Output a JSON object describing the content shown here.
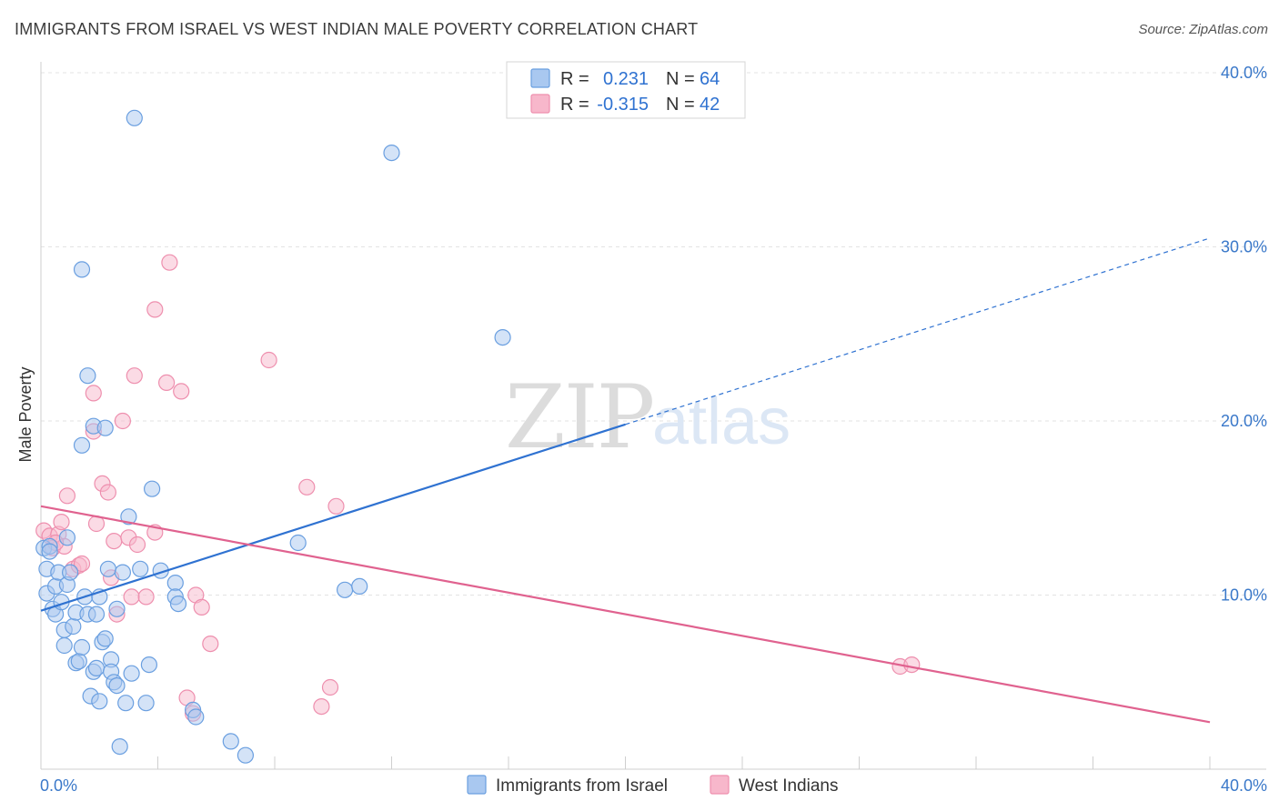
{
  "title": "IMMIGRANTS FROM ISRAEL VS WEST INDIAN MALE POVERTY CORRELATION CHART",
  "source": "Source: ZipAtlas.com",
  "watermark": {
    "zip": "ZIP",
    "atlas": "atlas"
  },
  "colors": {
    "blue_fill": "#a9c8f0",
    "blue_stroke": "#6a9fe0",
    "blue_line": "#2f72d1",
    "pink_fill": "#f7b7cb",
    "pink_stroke": "#ee8fae",
    "pink_line": "#e0628f",
    "tick_text": "#3a78c9",
    "grid": "#e3e3e3",
    "legend_value": "#2f72d1"
  },
  "legend": {
    "rows": [
      {
        "r_label": "R =",
        "r_value": "0.231",
        "n_label": "N =",
        "n_value": "64"
      },
      {
        "r_label": "R =",
        "r_value": "-0.315",
        "n_label": "N =",
        "n_value": "42"
      }
    ]
  },
  "chart_data": {
    "type": "scatter",
    "title": "IMMIGRANTS FROM ISRAEL VS WEST INDIAN MALE POVERTY CORRELATION CHART",
    "xlabel": "",
    "ylabel": "Male Poverty",
    "xlim": [
      0,
      40
    ],
    "ylim": [
      0,
      40
    ],
    "x_tick_labels": [
      "0.0%",
      "40.0%"
    ],
    "y_ticks": [
      10,
      20,
      30,
      40
    ],
    "y_tick_labels": [
      "10.0%",
      "20.0%",
      "30.0%",
      "40.0%"
    ],
    "series": [
      {
        "name": "Immigrants from Israel",
        "r": 0.231,
        "n": 64,
        "trend": {
          "x0": 0,
          "y0": 9.1,
          "x1": 40,
          "y1": 30.5,
          "solid_until_x": 20
        },
        "points": [
          [
            0.1,
            12.7
          ],
          [
            0.2,
            11.5
          ],
          [
            0.2,
            10.1
          ],
          [
            0.3,
            12.8
          ],
          [
            0.4,
            9.2
          ],
          [
            0.5,
            10.5
          ],
          [
            0.5,
            8.9
          ],
          [
            0.6,
            11.3
          ],
          [
            0.7,
            9.6
          ],
          [
            0.8,
            8.0
          ],
          [
            0.8,
            7.1
          ],
          [
            0.9,
            13.3
          ],
          [
            0.9,
            10.6
          ],
          [
            1.0,
            11.3
          ],
          [
            1.1,
            8.2
          ],
          [
            1.2,
            9.0
          ],
          [
            1.2,
            6.1
          ],
          [
            1.3,
            6.2
          ],
          [
            1.4,
            7.0
          ],
          [
            1.5,
            9.9
          ],
          [
            1.6,
            8.9
          ],
          [
            1.7,
            4.2
          ],
          [
            1.8,
            5.6
          ],
          [
            1.9,
            5.8
          ],
          [
            2.0,
            9.9
          ],
          [
            2.0,
            3.9
          ],
          [
            2.1,
            7.3
          ],
          [
            2.2,
            7.5
          ],
          [
            2.3,
            11.5
          ],
          [
            2.4,
            6.3
          ],
          [
            2.4,
            5.6
          ],
          [
            2.5,
            5.0
          ],
          [
            2.6,
            9.2
          ],
          [
            2.6,
            4.8
          ],
          [
            2.7,
            1.3
          ],
          [
            2.8,
            11.3
          ],
          [
            2.9,
            3.8
          ],
          [
            3.0,
            14.5
          ],
          [
            3.1,
            5.5
          ],
          [
            3.4,
            11.5
          ],
          [
            3.6,
            3.8
          ],
          [
            3.7,
            6.0
          ],
          [
            4.1,
            11.4
          ],
          [
            4.6,
            10.7
          ],
          [
            4.6,
            9.9
          ],
          [
            5.2,
            3.4
          ],
          [
            5.3,
            3.0
          ],
          [
            6.5,
            1.6
          ],
          [
            7.0,
            0.8
          ],
          [
            8.8,
            13.0
          ],
          [
            10.4,
            10.3
          ],
          [
            10.9,
            10.5
          ],
          [
            1.4,
            28.7
          ],
          [
            3.2,
            37.4
          ],
          [
            12.0,
            35.4
          ],
          [
            15.8,
            24.8
          ],
          [
            1.6,
            22.6
          ],
          [
            1.8,
            19.7
          ],
          [
            2.2,
            19.6
          ],
          [
            1.4,
            18.6
          ],
          [
            3.8,
            16.1
          ],
          [
            0.3,
            12.5
          ],
          [
            1.9,
            8.9
          ],
          [
            4.7,
            9.5
          ]
        ]
      },
      {
        "name": "West Indians",
        "r": -0.315,
        "n": 42,
        "trend": {
          "x0": 0,
          "y0": 15.1,
          "x1": 40,
          "y1": 2.7
        },
        "points": [
          [
            0.1,
            13.7
          ],
          [
            0.3,
            13.4
          ],
          [
            0.4,
            12.7
          ],
          [
            0.6,
            13.5
          ],
          [
            0.7,
            14.2
          ],
          [
            0.8,
            12.8
          ],
          [
            0.9,
            15.7
          ],
          [
            1.1,
            11.5
          ],
          [
            1.3,
            11.7
          ],
          [
            1.4,
            11.8
          ],
          [
            1.8,
            21.6
          ],
          [
            1.8,
            19.4
          ],
          [
            1.9,
            14.1
          ],
          [
            2.1,
            16.4
          ],
          [
            2.3,
            15.9
          ],
          [
            2.4,
            11.0
          ],
          [
            2.5,
            13.1
          ],
          [
            2.6,
            8.9
          ],
          [
            2.8,
            20.0
          ],
          [
            3.0,
            13.3
          ],
          [
            3.1,
            9.9
          ],
          [
            3.2,
            22.6
          ],
          [
            3.3,
            12.9
          ],
          [
            3.6,
            9.9
          ],
          [
            3.9,
            13.6
          ],
          [
            3.9,
            26.4
          ],
          [
            4.3,
            22.2
          ],
          [
            4.4,
            29.1
          ],
          [
            4.8,
            21.7
          ],
          [
            5.0,
            4.1
          ],
          [
            5.2,
            3.2
          ],
          [
            5.3,
            10.0
          ],
          [
            5.5,
            9.3
          ],
          [
            5.8,
            7.2
          ],
          [
            7.8,
            23.5
          ],
          [
            9.1,
            16.2
          ],
          [
            9.6,
            3.6
          ],
          [
            9.9,
            4.7
          ],
          [
            10.1,
            15.1
          ],
          [
            29.4,
            5.9
          ],
          [
            29.8,
            6.0
          ],
          [
            0.5,
            13.0
          ]
        ]
      }
    ]
  }
}
